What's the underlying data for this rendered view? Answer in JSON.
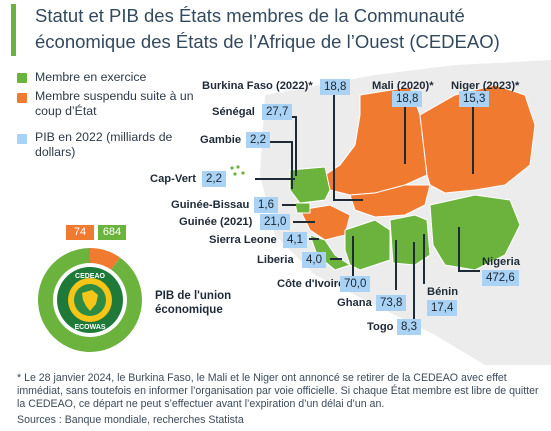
{
  "title": "Statut et PIB des États membres de la Communauté économique des États de l’Afrique de l’Ouest (CEDEAO)",
  "legend": {
    "member": "Membre en exercice",
    "suspended": "Membre suspendu suite à un coup d’État",
    "gdp": "PIB en 2022 (milliards de dollars)"
  },
  "colors": {
    "member": "#6cb33e",
    "suspended": "#f17a31",
    "gdp": "#a9d2f5",
    "background_land": "#ececec"
  },
  "chart_data": {
    "type": "table",
    "title": "Statut et PIB des États membres de la Communauté économique des États de l’Afrique de l’Ouest (CEDEAO)",
    "unit": "milliards de dollars",
    "countries": [
      {
        "name": "Burkina Faso (2022)*",
        "gdp": "18,8",
        "status": "suspended"
      },
      {
        "name": "Mali (2020)*",
        "gdp": "18,8",
        "status": "suspended"
      },
      {
        "name": "Niger (2023)*",
        "gdp": "15,3",
        "status": "suspended"
      },
      {
        "name": "Sénégal",
        "gdp": "27,7",
        "status": "member"
      },
      {
        "name": "Gambie",
        "gdp": "2,2",
        "status": "member"
      },
      {
        "name": "Cap-Vert",
        "gdp": "2,2",
        "status": "member"
      },
      {
        "name": "Guinée-Bissau",
        "gdp": "1,6",
        "status": "member"
      },
      {
        "name": "Guinée (2021)",
        "gdp": "21,0",
        "status": "suspended"
      },
      {
        "name": "Sierra Leone",
        "gdp": "4,1",
        "status": "member"
      },
      {
        "name": "Liberia",
        "gdp": "4,0",
        "status": "member"
      },
      {
        "name": "Côte d'Ivoire",
        "gdp": "70,0",
        "status": "member"
      },
      {
        "name": "Ghana",
        "gdp": "73,8",
        "status": "member"
      },
      {
        "name": "Togo",
        "gdp": "8,3",
        "status": "member"
      },
      {
        "name": "Bénin",
        "gdp": "17,4",
        "status": "member"
      },
      {
        "name": "Nigeria",
        "gdp": "472,6",
        "status": "member"
      }
    ],
    "union_gdp": {
      "label": "PIB de l'union économique",
      "suspended": 74,
      "member": 684,
      "suspended_text": "74",
      "member_text": "684"
    }
  },
  "logo": {
    "top_text": "CEDEAO",
    "bottom_text": "ECOWAS"
  },
  "footnote": "* Le 28 janvier 2024, le Burkina Faso, le Mali et le Niger ont annoncé se retirer de la CEDEAO avec effet immédiat, sans toutefois en informer l’organisation par voie officielle. Si chaque État membre est libre de quitter la CEDEAO, ce départ ne peut s’effectuer avant l’expiration d’un délai d’un an.",
  "sources": "Sources : Banque mondiale, recherches Statista"
}
